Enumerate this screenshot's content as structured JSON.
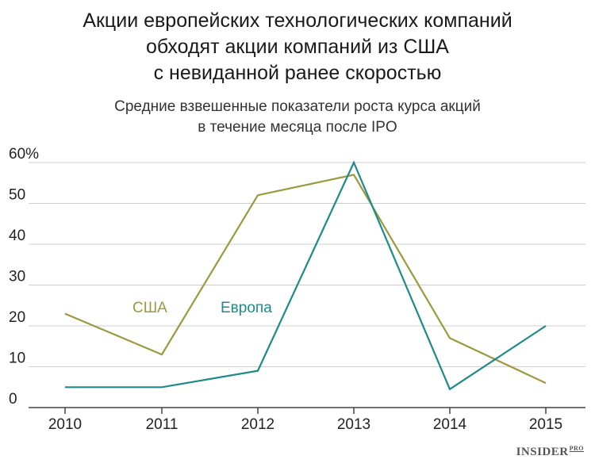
{
  "header": {
    "title_line1": "Акции европейских технологических компаний",
    "title_line2": "обходят акции компаний из США",
    "title_line3": "с невиданной ранее скоростью",
    "subtitle_line1": "Средние взвешенные показатели роста курса акций",
    "subtitle_line2": "в течение месяца после IPO"
  },
  "brand": {
    "name": "INSIDER",
    "suffix": "PRO"
  },
  "colors": {
    "usa": "#9a9a3e",
    "europe": "#1e8a8a",
    "axis": "#444444",
    "grid": "#cfcfcf"
  },
  "chart_data": {
    "type": "line",
    "x": [
      2010,
      2011,
      2012,
      2013,
      2014,
      2015
    ],
    "x_tick_labels": [
      "2010",
      "2011",
      "2012",
      "2013",
      "2014",
      "2015"
    ],
    "y_tick_labels": [
      "0",
      "10",
      "20",
      "30",
      "40",
      "50",
      "60%"
    ],
    "ylim": [
      0,
      60
    ],
    "grid": true,
    "series": [
      {
        "name": "США",
        "values": [
          23,
          13,
          52,
          57,
          17,
          6
        ]
      },
      {
        "name": "Европа",
        "values": [
          5,
          5,
          9,
          60,
          4.5,
          20
        ]
      }
    ]
  }
}
